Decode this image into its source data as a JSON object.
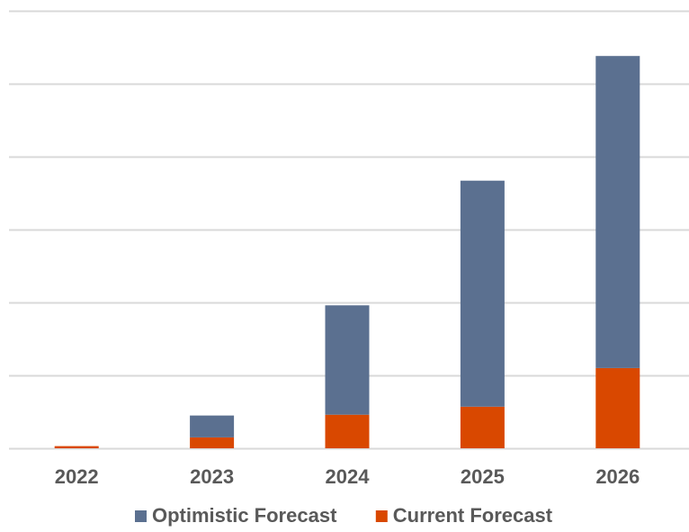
{
  "chart_data": {
    "type": "bar",
    "stacked": true,
    "categories": [
      "2022",
      "2023",
      "2024",
      "2025",
      "2026"
    ],
    "series": [
      {
        "name": "Current Forecast",
        "values": [
          0.15,
          0.75,
          2.3,
          2.85,
          5.5
        ],
        "color": "#D94800"
      },
      {
        "name": "Optimistic Forecast",
        "values": [
          0,
          1.5,
          7.5,
          15.5,
          21.4
        ],
        "color": "#5B7090"
      }
    ],
    "title": "",
    "xlabel": "",
    "ylabel": "",
    "ylim": [
      0,
      30
    ],
    "y_gridlines": [
      0,
      5,
      10,
      15,
      20,
      25,
      30
    ],
    "y_tick_labels_shown": false,
    "grid": true,
    "legend": {
      "placement": "bottom",
      "order": [
        "Optimistic Forecast",
        "Current Forecast"
      ]
    }
  }
}
